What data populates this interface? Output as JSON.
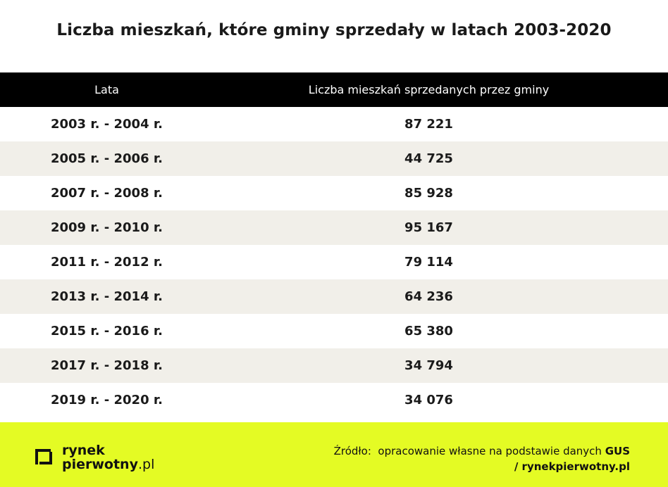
{
  "title": "Liczba mieszkań, które gminy sprzedały w latach 2003-2020",
  "chart_data": {
    "type": "table",
    "columns": [
      "Lata",
      "Liczba mieszkań sprzedanych przez gminy"
    ],
    "rows": [
      {
        "period": "2003 r. - 2004 r.",
        "value": "87 221"
      },
      {
        "period": "2005 r. - 2006 r.",
        "value": "44 725"
      },
      {
        "period": "2007 r. - 2008 r.",
        "value": "85 928"
      },
      {
        "period": "2009 r. - 2010 r.",
        "value": "95 167"
      },
      {
        "period": "2011 r. - 2012 r.",
        "value": "79 114"
      },
      {
        "period": "2013 r. - 2014 r.",
        "value": "64 236"
      },
      {
        "period": "2015 r. - 2016 r.",
        "value": "65 380"
      },
      {
        "period": "2017 r. - 2018 r.",
        "value": "34 794"
      },
      {
        "period": "2019 r. - 2020 r.",
        "value": "34 076"
      }
    ]
  },
  "footer": {
    "logo_line1": "rynek",
    "logo_line2_main": "pierwotny",
    "logo_line2_tld": ".pl",
    "source_prefix": "Źródło:  opracowanie własne na podstawie danych ",
    "source_bold": "GUS",
    "source_site": "/ rynekpierwotny.pl",
    "logo_icon": "bracket-square-logo-icon",
    "background_color": "#e4fb24"
  }
}
